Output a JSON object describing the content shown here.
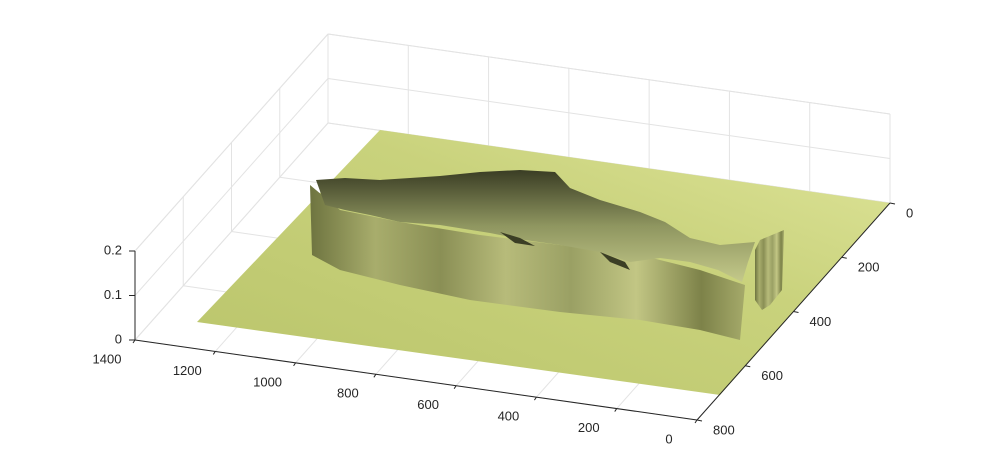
{
  "chart_data": {
    "type": "surface3d",
    "xlim": [
      0,
      1400
    ],
    "ylim": [
      0,
      800
    ],
    "zlim": [
      0,
      0.2
    ],
    "xticks": [
      0,
      200,
      400,
      600,
      800,
      1000,
      1200,
      1400
    ],
    "yticks": [
      0,
      200,
      400,
      600,
      800
    ],
    "zticks": [
      0,
      0.1,
      0.2
    ],
    "grid": true,
    "color": "#c9d27c"
  }
}
